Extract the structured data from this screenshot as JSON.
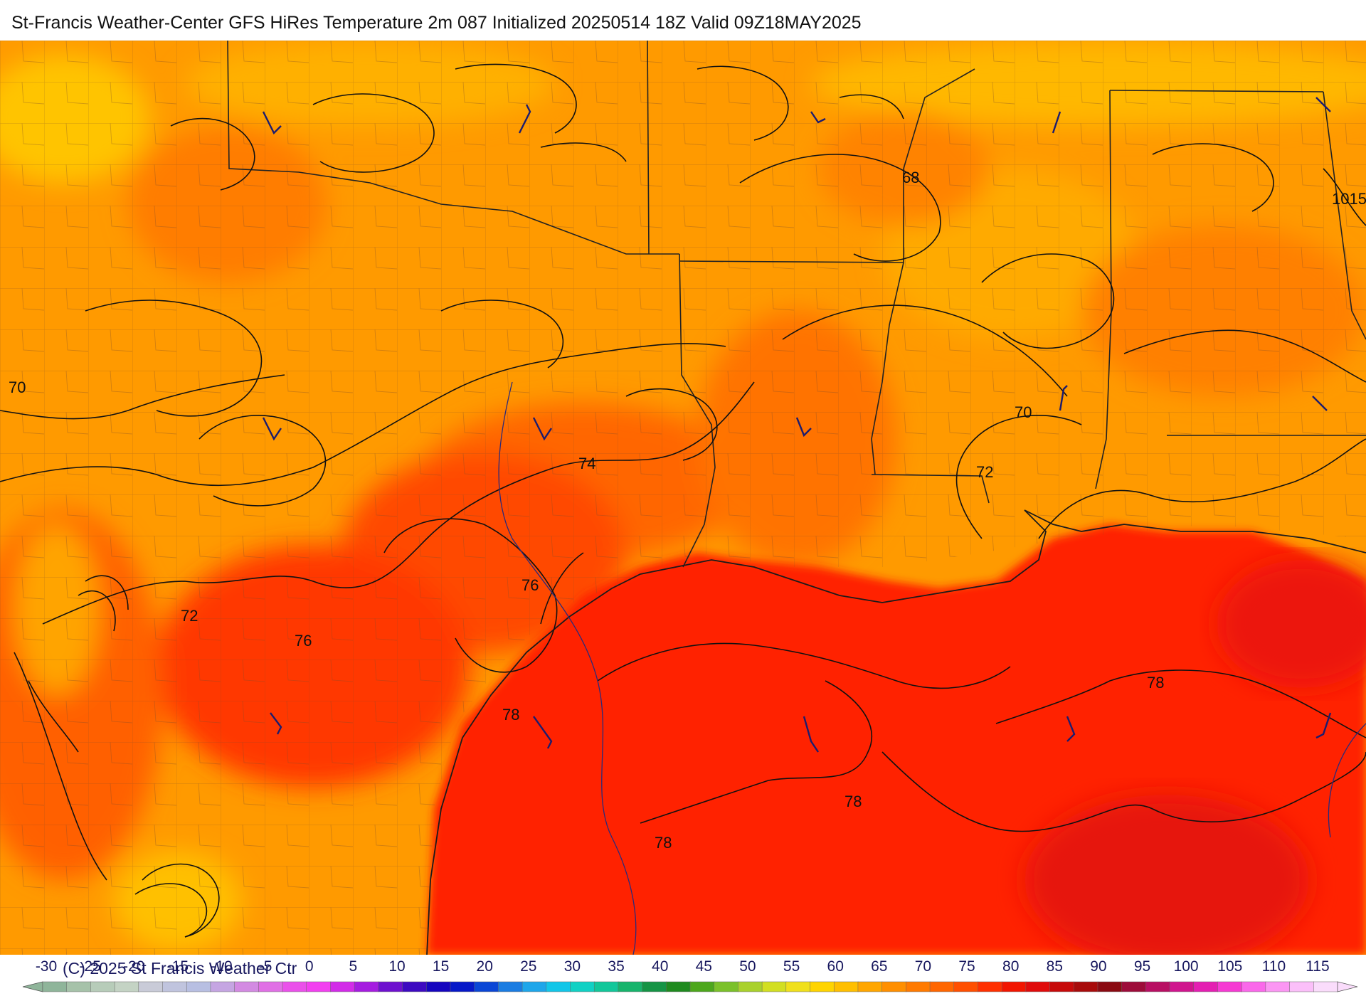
{
  "title": "St-Francis Weather-Center GFS HiRes Temperature 2m  087 Initialized 20250514 18Z Valid 09Z18MAY2025",
  "copyright": "(C) 2025 St Francis Weather Ctr",
  "map": {
    "temperature_labels": [
      "68",
      "70",
      "70",
      "72",
      "72",
      "74",
      "76",
      "76",
      "78",
      "78",
      "78",
      "78"
    ],
    "pressure_label": "1015"
  },
  "legend": {
    "ticks": [
      "-30",
      "-25",
      "-20",
      "-15",
      "-10",
      "-5",
      "0",
      "5",
      "10",
      "15",
      "20",
      "25",
      "30",
      "35",
      "40",
      "45",
      "50",
      "55",
      "60",
      "65",
      "70",
      "75",
      "80",
      "85",
      "90",
      "95",
      "100",
      "105",
      "110",
      "115"
    ],
    "colors": [
      "#8fb59a",
      "#a6c2a9",
      "#b7ccb9",
      "#c4d3c4",
      "#c9cbd8",
      "#c0c4de",
      "#b8bfe2",
      "#c5a5e2",
      "#d38ae2",
      "#e070e5",
      "#ea50ea",
      "#f23ff0",
      "#d22be8",
      "#a51ce0",
      "#6e11cf",
      "#3d0ac1",
      "#1505bf",
      "#0618c8",
      "#0a46d6",
      "#1a7ce2",
      "#1ea6ea",
      "#12c6e8",
      "#11d1c4",
      "#12c79a",
      "#17b46c",
      "#159445",
      "#1f8a1f",
      "#4da71c",
      "#7bc12a",
      "#a9d12c",
      "#d2df22",
      "#f0e01c",
      "#ffd400",
      "#ffbf00",
      "#ffa600",
      "#ff8f00",
      "#ff7a00",
      "#ff6600",
      "#ff4f00",
      "#ff3000",
      "#f21500",
      "#e00b0b",
      "#c70a0a",
      "#a80b0b",
      "#8a0a12",
      "#9d0c3a",
      "#b80f63",
      "#d0158e",
      "#e41fb2",
      "#f63ad3",
      "#fa68ea",
      "#fb96f3",
      "#fbbff9",
      "#fadcfb"
    ]
  }
}
